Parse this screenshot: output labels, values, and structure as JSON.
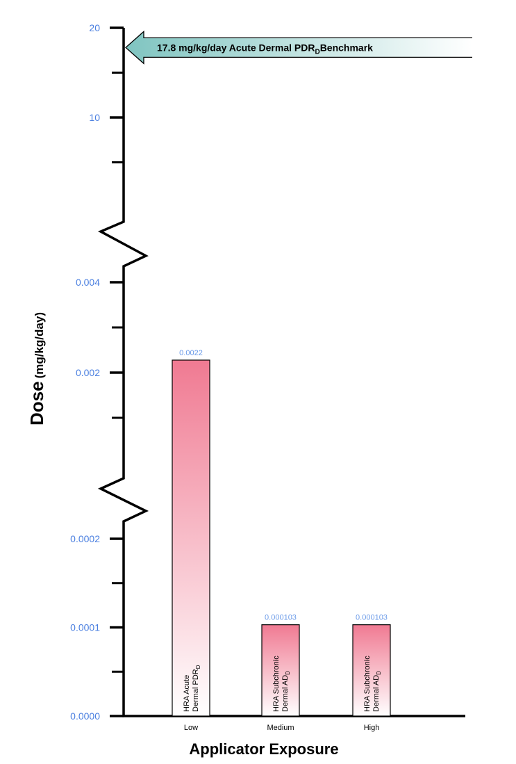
{
  "chart_data": {
    "type": "bar",
    "title": "",
    "xlabel": "Applicator Exposure",
    "ylabel_main": "Dose",
    "ylabel_units": "(mg/kg/day)",
    "axis_break": true,
    "y_segments": [
      {
        "range": [
          0,
          0.0002
        ],
        "ticks": [
          {
            "v": 0,
            "label": "0.0000"
          },
          {
            "v": 0.0001,
            "label": "0.0001"
          },
          {
            "v": 0.0002,
            "label": "0.0002"
          }
        ],
        "minor": [
          5e-05,
          0.00015
        ]
      },
      {
        "range": [
          0.002,
          0.004
        ],
        "ticks": [
          {
            "v": 0.002,
            "label": "0.002"
          },
          {
            "v": 0.004,
            "label": "0.004"
          }
        ],
        "minor": [
          0.001,
          0.003
        ]
      },
      {
        "range": [
          10,
          20
        ],
        "ticks": [
          {
            "v": 10,
            "label": "10"
          },
          {
            "v": 20,
            "label": "20"
          }
        ],
        "minor": [
          5,
          15
        ]
      }
    ],
    "categories": [
      "Low",
      "Medium",
      "High"
    ],
    "values": [
      0.0022,
      0.000103,
      0.000103
    ],
    "value_labels": [
      "0.0022",
      "0.000103",
      "0.000103"
    ],
    "bar_text": [
      {
        "line1": "HRA Acute",
        "line2": "Dermal PDR",
        "sub": "D"
      },
      {
        "line1": "HRA Subchronic",
        "line2": "Dermal AD",
        "sub": "D"
      },
      {
        "line1": "HRA Subchronic",
        "line2": "Dermal AD",
        "sub": "D"
      }
    ],
    "benchmark": {
      "value": 17.8,
      "text": "17.8 mg/kg/day Acute Dermal PDR",
      "sub": "D",
      "suffix": "Benchmark"
    },
    "colors": {
      "bar_top": "#f07a92",
      "bar_bottom": "#ffffff",
      "arrow_left": "#7fc4c0",
      "arrow_right": "#ffffff",
      "tick_label": "#4a7fe0"
    }
  }
}
